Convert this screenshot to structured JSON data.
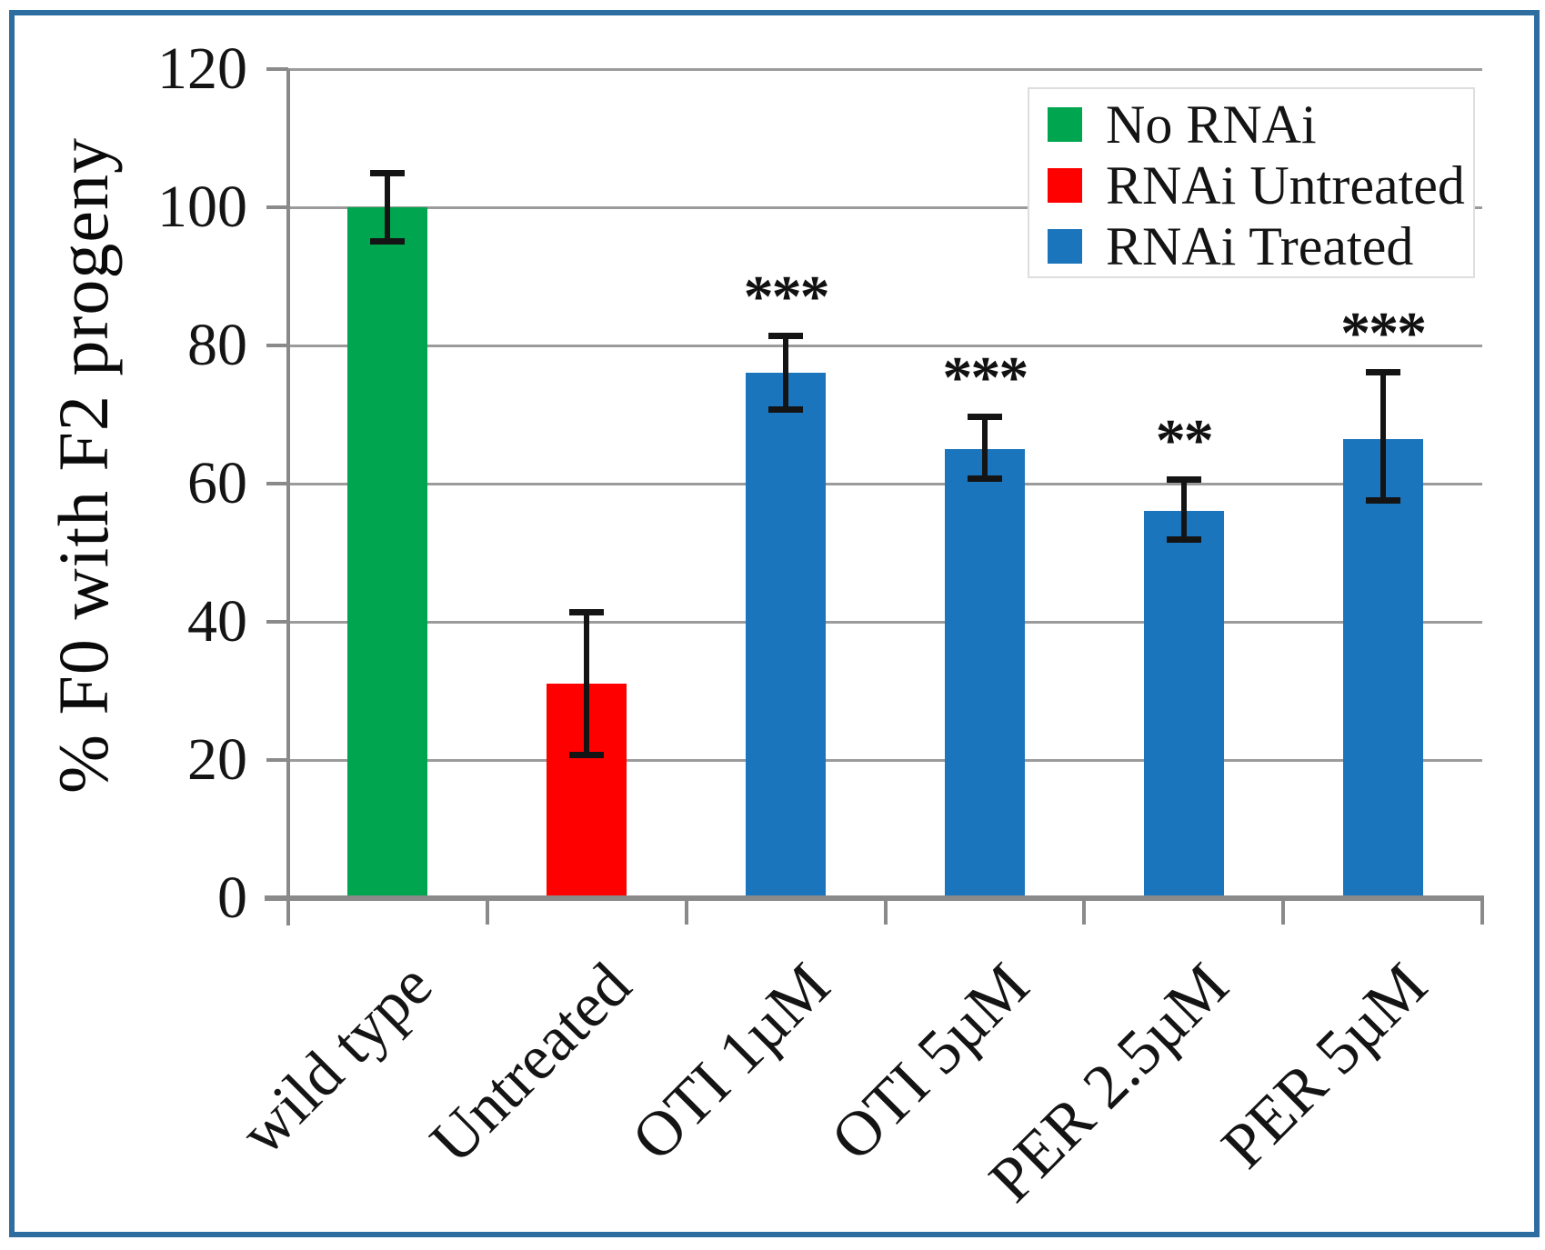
{
  "figure": {
    "background": "#FFFFFF",
    "border_color": "#2E6DA0"
  },
  "chart_data": {
    "type": "bar",
    "title": "",
    "xlabel": "",
    "ylabel": "% F0 with F2 progeny",
    "ylim": [
      0,
      120
    ],
    "yticks": [
      0,
      20,
      40,
      60,
      80,
      100,
      120
    ],
    "grid": true,
    "categories": [
      "wild type",
      "Untreated",
      "OTI 1µM",
      "OTI 5µM",
      "PER 2.5µM",
      "PER 5µM"
    ],
    "values": [
      100,
      31,
      76,
      65,
      56,
      66.5
    ],
    "error_plus": [
      5,
      10.5,
      5.5,
      4.7,
      4.6,
      9.7
    ],
    "error_minus": [
      5,
      10.3,
      5.4,
      4.3,
      4.2,
      9.0
    ],
    "significance": [
      "",
      "",
      "***",
      "***",
      "**",
      "***"
    ],
    "series_of_bar": [
      0,
      1,
      2,
      2,
      2,
      2
    ],
    "legend": {
      "position": "top-right",
      "entries": [
        {
          "label": "No RNAi",
          "color": "#00A64F"
        },
        {
          "label": "RNAi Untreated",
          "color": "#FF0000"
        },
        {
          "label": "RNAi Treated",
          "color": "#1B75BC"
        }
      ]
    },
    "colors": {
      "grid": "#9B9B9B",
      "axis": "#8A8A8A",
      "error_bar": "#141414"
    }
  }
}
